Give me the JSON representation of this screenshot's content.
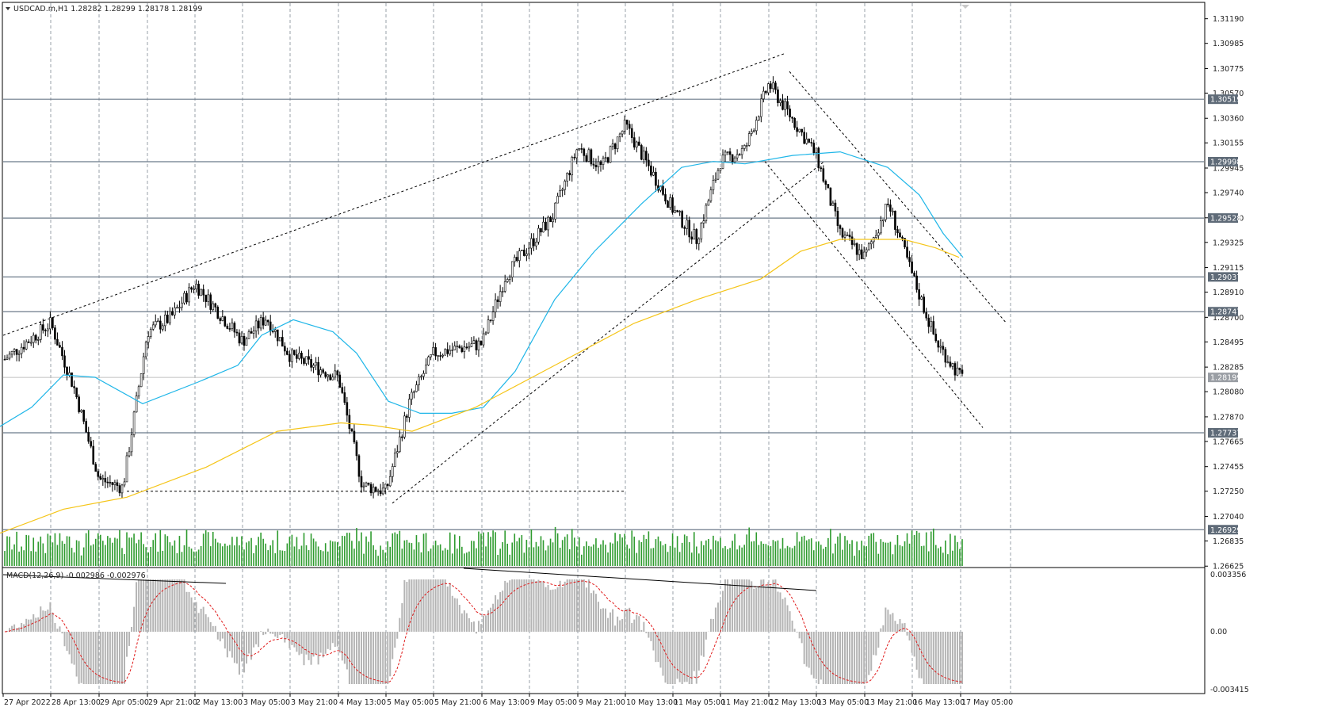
{
  "header": {
    "symbol_info": "USDCAD.m,H1  1.28282 1.28299 1.28178 1.28199"
  },
  "macd": {
    "info": "MACD(12,26,9) -0.002986 -0.002976",
    "scale_top": "0.003356",
    "scale_zero": "0.00",
    "scale_bottom": "-0.003415"
  },
  "price_axis": {
    "ticks": [
      "1.31190",
      "1.30985",
      "1.30775",
      "1.30570",
      "1.30360",
      "1.30155",
      "1.29945",
      "1.29740",
      "1.29530",
      "1.29325",
      "1.29115",
      "1.28910",
      "1.28700",
      "1.28495",
      "1.28285",
      "1.28080",
      "1.27870",
      "1.27665",
      "1.27455",
      "1.27250",
      "1.27040",
      "1.26835",
      "1.26625"
    ]
  },
  "levels": [
    "1.30519",
    "1.29998",
    "1.29528",
    "1.29037",
    "1.28747",
    "1.27737",
    "1.26929"
  ],
  "current_price": "1.28199",
  "time_axis": [
    "27 Apr 2022",
    "28 Apr 13:00",
    "29 Apr 05:00",
    "29 Apr 21:00",
    "2 May 13:00",
    "3 May 05:00",
    "3 May 21:00",
    "4 May 13:00",
    "5 May 05:00",
    "5 May 21:00",
    "6 May 13:00",
    "9 May 05:00",
    "9 May 21:00",
    "10 May 13:00",
    "11 May 05:00",
    "11 May 21:00",
    "12 May 13:00",
    "13 May 05:00",
    "13 May 21:00",
    "16 May 13:00",
    "17 May 05:00"
  ],
  "colors": {
    "ma_fast": "#1fb6e8",
    "ma_slow": "#f5c518",
    "volume": "#2e9b2e",
    "macd_hist": "#b4b4b4",
    "macd_signal": "#e01818",
    "level_line": "#6b7a8a",
    "price_tag": "#5f6b78"
  },
  "chart_data": {
    "type": "candlestick",
    "title": "USDCAD.m,H1",
    "timeframe": "H1",
    "ohlc_last": {
      "open": 1.28282,
      "high": 1.28299,
      "low": 1.28178,
      "close": 1.28199
    },
    "ylim": [
      1.2662,
      1.3132
    ],
    "price_waypoints": [
      {
        "t": "27 Apr 2022",
        "p": 1.2834
      },
      {
        "t": "28 Apr 13:00",
        "p": 1.2865
      },
      {
        "t": "28 Apr 21:00",
        "p": 1.281
      },
      {
        "t": "29 Apr 05:00",
        "p": 1.2735
      },
      {
        "t": "29 Apr 13:00",
        "p": 1.2728
      },
      {
        "t": "29 Apr 21:00",
        "p": 1.2858
      },
      {
        "t": "2 May 05:00",
        "p": 1.287
      },
      {
        "t": "2 May 13:00",
        "p": 1.2898
      },
      {
        "t": "3 May 05:00",
        "p": 1.285
      },
      {
        "t": "3 May 13:00",
        "p": 1.287
      },
      {
        "t": "3 May 21:00",
        "p": 1.2838
      },
      {
        "t": "4 May 13:00",
        "p": 1.282
      },
      {
        "t": "4 May 21:00",
        "p": 1.273
      },
      {
        "t": "5 May 05:00",
        "p": 1.2725
      },
      {
        "t": "5 May 13:00",
        "p": 1.28
      },
      {
        "t": "5 May 21:00",
        "p": 1.284
      },
      {
        "t": "6 May 13:00",
        "p": 1.2848
      },
      {
        "t": "6 May 21:00",
        "p": 1.2905
      },
      {
        "t": "9 May 05:00",
        "p": 1.293
      },
      {
        "t": "9 May 13:00",
        "p": 1.2955
      },
      {
        "t": "9 May 21:00",
        "p": 1.3012
      },
      {
        "t": "10 May 05:00",
        "p": 1.2995
      },
      {
        "t": "10 May 13:00",
        "p": 1.303
      },
      {
        "t": "11 May 05:00",
        "p": 1.296
      },
      {
        "t": "11 May 13:00",
        "p": 1.2935
      },
      {
        "t": "11 May 21:00",
        "p": 1.3
      },
      {
        "t": "12 May 05:00",
        "p": 1.301
      },
      {
        "t": "12 May 13:00",
        "p": 1.3065
      },
      {
        "t": "13 May 05:00",
        "p": 1.3005
      },
      {
        "t": "13 May 13:00",
        "p": 1.294
      },
      {
        "t": "13 May 21:00",
        "p": 1.292
      },
      {
        "t": "16 May 05:00",
        "p": 1.2965
      },
      {
        "t": "16 May 13:00",
        "p": 1.2905
      },
      {
        "t": "16 May 21:00",
        "p": 1.285
      },
      {
        "t": "17 May 05:00",
        "p": 1.282
      }
    ],
    "moving_averages": [
      {
        "color": "#1fb6e8",
        "points": [
          [
            0,
            1.2779
          ],
          [
            40,
            1.2795
          ],
          [
            80,
            1.2822
          ],
          [
            120,
            1.282
          ],
          [
            180,
            1.2798
          ],
          [
            250,
            1.2816
          ],
          [
            300,
            1.283
          ],
          [
            330,
            1.2855
          ],
          [
            370,
            1.2868
          ],
          [
            420,
            1.2858
          ],
          [
            450,
            1.284
          ],
          [
            490,
            1.28
          ],
          [
            530,
            1.279
          ],
          [
            570,
            1.279
          ],
          [
            610,
            1.2795
          ],
          [
            650,
            1.2825
          ],
          [
            700,
            1.2885
          ],
          [
            750,
            1.2925
          ],
          [
            810,
            1.2965
          ],
          [
            860,
            1.2995
          ],
          [
            900,
            1.3
          ],
          [
            940,
            1.2998
          ],
          [
            1000,
            1.3005
          ],
          [
            1060,
            1.3008
          ],
          [
            1120,
            1.2995
          ],
          [
            1160,
            1.2972
          ],
          [
            1190,
            1.294
          ],
          [
            1215,
            1.292
          ]
        ]
      },
      {
        "color": "#f5c518",
        "points": [
          [
            0,
            1.269
          ],
          [
            80,
            1.271
          ],
          [
            160,
            1.272
          ],
          [
            260,
            1.2745
          ],
          [
            350,
            1.2775
          ],
          [
            430,
            1.2782
          ],
          [
            470,
            1.278
          ],
          [
            520,
            1.2775
          ],
          [
            600,
            1.2795
          ],
          [
            700,
            1.283
          ],
          [
            800,
            1.2865
          ],
          [
            880,
            1.2885
          ],
          [
            960,
            1.2902
          ],
          [
            1010,
            1.2925
          ],
          [
            1060,
            1.2935
          ],
          [
            1100,
            1.2935
          ],
          [
            1140,
            1.2935
          ],
          [
            1180,
            1.2928
          ],
          [
            1210,
            1.292
          ]
        ]
      }
    ],
    "horizontal_levels": [
      1.30519,
      1.29998,
      1.29528,
      1.29037,
      1.28747,
      1.27737,
      1.26929
    ]
  }
}
